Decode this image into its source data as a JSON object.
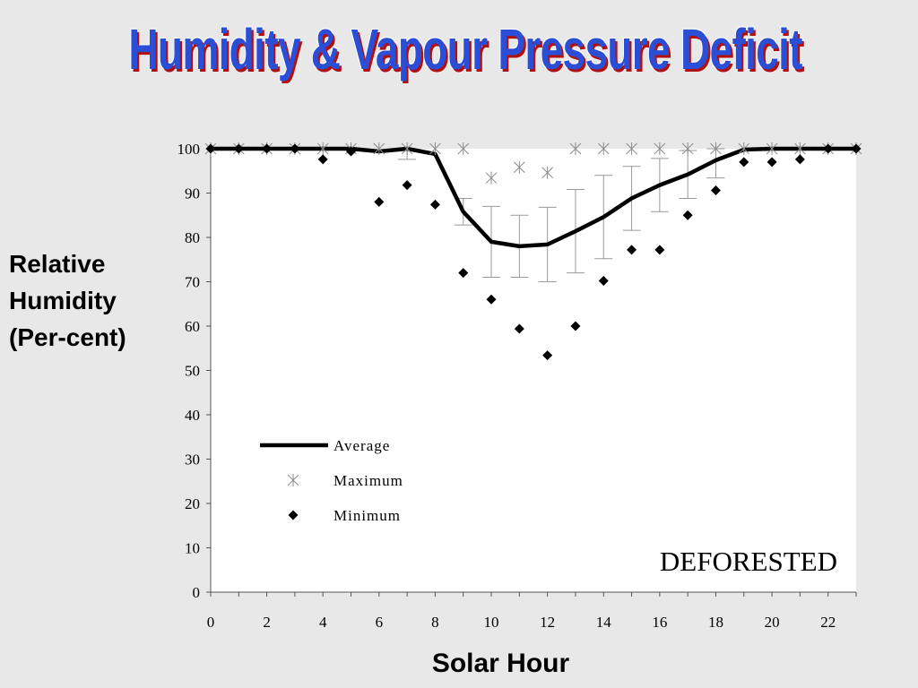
{
  "slide": {
    "title": "Humidity & Vapour Pressure Deficit",
    "ylabel_lines": [
      "Relative",
      "Humidity",
      "(Per-cent)"
    ],
    "xlabel": "Solar Hour"
  },
  "chart_data": {
    "type": "line",
    "title": "",
    "xlabel": "Solar Hour",
    "ylabel": "Relative Humidity (Per-cent)",
    "xlim": [
      0,
      23
    ],
    "ylim": [
      0,
      100
    ],
    "x_ticks": [
      0,
      2,
      4,
      6,
      8,
      10,
      12,
      14,
      16,
      18,
      20,
      22
    ],
    "y_ticks": [
      0,
      10,
      20,
      30,
      40,
      50,
      60,
      70,
      80,
      90,
      100
    ],
    "x": [
      0,
      1,
      2,
      3,
      4,
      5,
      6,
      7,
      8,
      9,
      10,
      11,
      12,
      13,
      14,
      15,
      16,
      17,
      18,
      19,
      20,
      21,
      22,
      23
    ],
    "series": [
      {
        "name": "Average",
        "style": "line",
        "color": "#000000",
        "values": [
          100,
          100,
          100,
          100,
          100,
          100,
          99.4,
          100,
          98.8,
          85.8,
          79,
          78,
          78.4,
          81.4,
          84.6,
          88.8,
          91.8,
          94.2,
          97.4,
          99.8,
          100,
          100,
          100,
          100
        ],
        "error": [
          0,
          0,
          0,
          0,
          0,
          0,
          0,
          2.4,
          0,
          3,
          8,
          7,
          8.4,
          9.4,
          9.4,
          7.2,
          6,
          5.4,
          4,
          0,
          0,
          0,
          0,
          0
        ]
      },
      {
        "name": "Maximum",
        "style": "asterisk",
        "color": "#8c8c8c",
        "values": [
          100,
          100,
          100,
          100,
          100,
          100,
          100,
          100,
          100,
          100,
          93.4,
          95.8,
          94.6,
          100,
          100,
          100,
          100,
          100,
          100,
          100,
          100,
          100,
          100,
          100
        ]
      },
      {
        "name": "Minimum",
        "style": "diamond",
        "color": "#000000",
        "values": [
          100,
          100,
          100,
          100,
          97.6,
          99.4,
          88,
          91.8,
          87.4,
          72,
          66,
          59.4,
          53.4,
          60,
          70.2,
          77.2,
          77.2,
          85,
          90.6,
          97,
          97,
          97.6,
          100,
          100
        ]
      }
    ],
    "legend": {
      "position": "bottom-left",
      "entries": [
        "Average",
        "Maximum",
        "Minimum"
      ]
    },
    "annotations": [
      "DEFORESTED"
    ],
    "grid": false
  }
}
